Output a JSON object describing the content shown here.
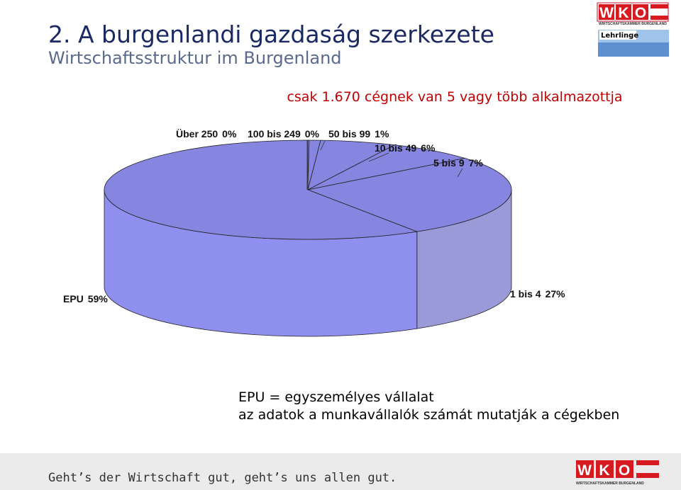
{
  "header": {
    "title": "2. A burgenlandi gazdaság szerkezete",
    "subtitle": "Wirtschaftsstruktur im Burgenland"
  },
  "logo": {
    "letters": [
      "W",
      "K",
      "O"
    ],
    "caption": "WIRTSCHAFTSKAMMER BURGENLAND",
    "badge": "Lehrlinge"
  },
  "chart_data": {
    "type": "pie",
    "title": "csak 1.670 cégnek  van 5 vagy több alkalmazottja",
    "categories": [
      "Über 250",
      "100 bis 249",
      "50 bis 99",
      "10 bis 49",
      "5 bis 9",
      "1 bis 4",
      "EPU"
    ],
    "values": [
      0,
      0,
      1,
      6,
      7,
      27,
      59
    ],
    "value_labels": [
      "0%",
      "0%",
      "1%",
      "6%",
      "7%",
      "27%",
      "59%"
    ],
    "color": "#8686e0"
  },
  "notes": [
    "EPU = egyszemélyes vállalat",
    "az adatok a munkavállalók számát mutatják a cégekben"
  ],
  "footer": {
    "slogan": "Geht’s der Wirtschaft gut, geht’s uns allen gut.",
    "letters": [
      "W",
      "K",
      "O"
    ],
    "caption": "WIRTSCHAFTSKAMMER BURGENLAND"
  }
}
